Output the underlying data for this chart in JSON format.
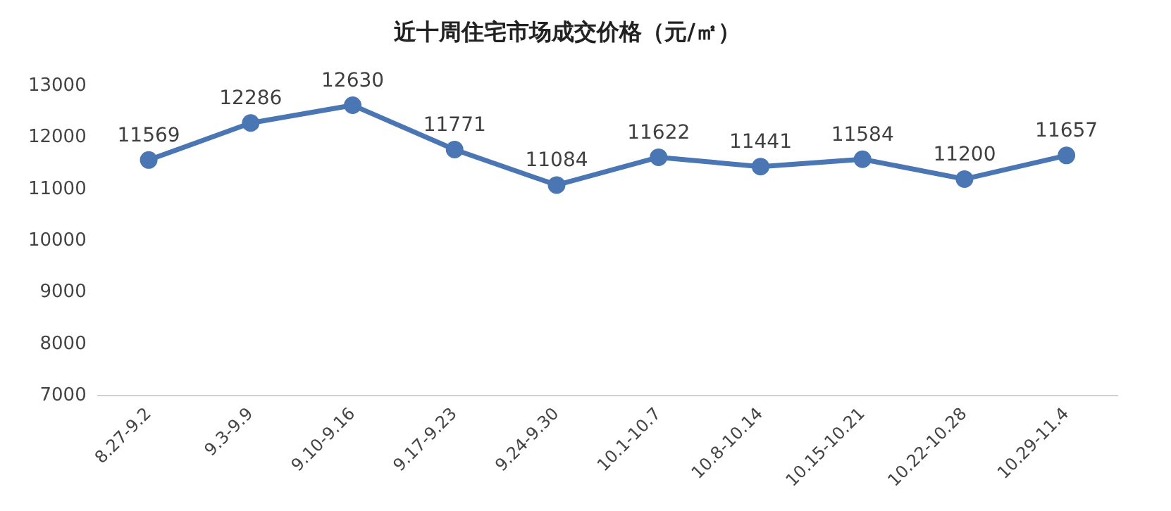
{
  "chart_data": {
    "type": "line",
    "title": "近十周住宅市场成交价格（元/㎡）",
    "categories": [
      "8.27-9.2",
      "9.3-9.9",
      "9.10-9.16",
      "9.17-9.23",
      "9.24-9.30",
      "10.1-10.7",
      "10.8-10.14",
      "10.15-10.21",
      "10.22-10.28",
      "10.29-11.4"
    ],
    "series": [
      {
        "color": "#4a76b3",
        "values": [
          11569,
          12286,
          12630,
          11771,
          11084,
          11622,
          11441,
          11584,
          11200,
          11657
        ]
      }
    ],
    "ylim": [
      7000,
      13000
    ],
    "yticks": [
      7000,
      8000,
      9000,
      10000,
      11000,
      12000,
      13000
    ],
    "grid": false,
    "legend": false,
    "marker": "circle",
    "line_style": "solid",
    "data_labels": true
  }
}
